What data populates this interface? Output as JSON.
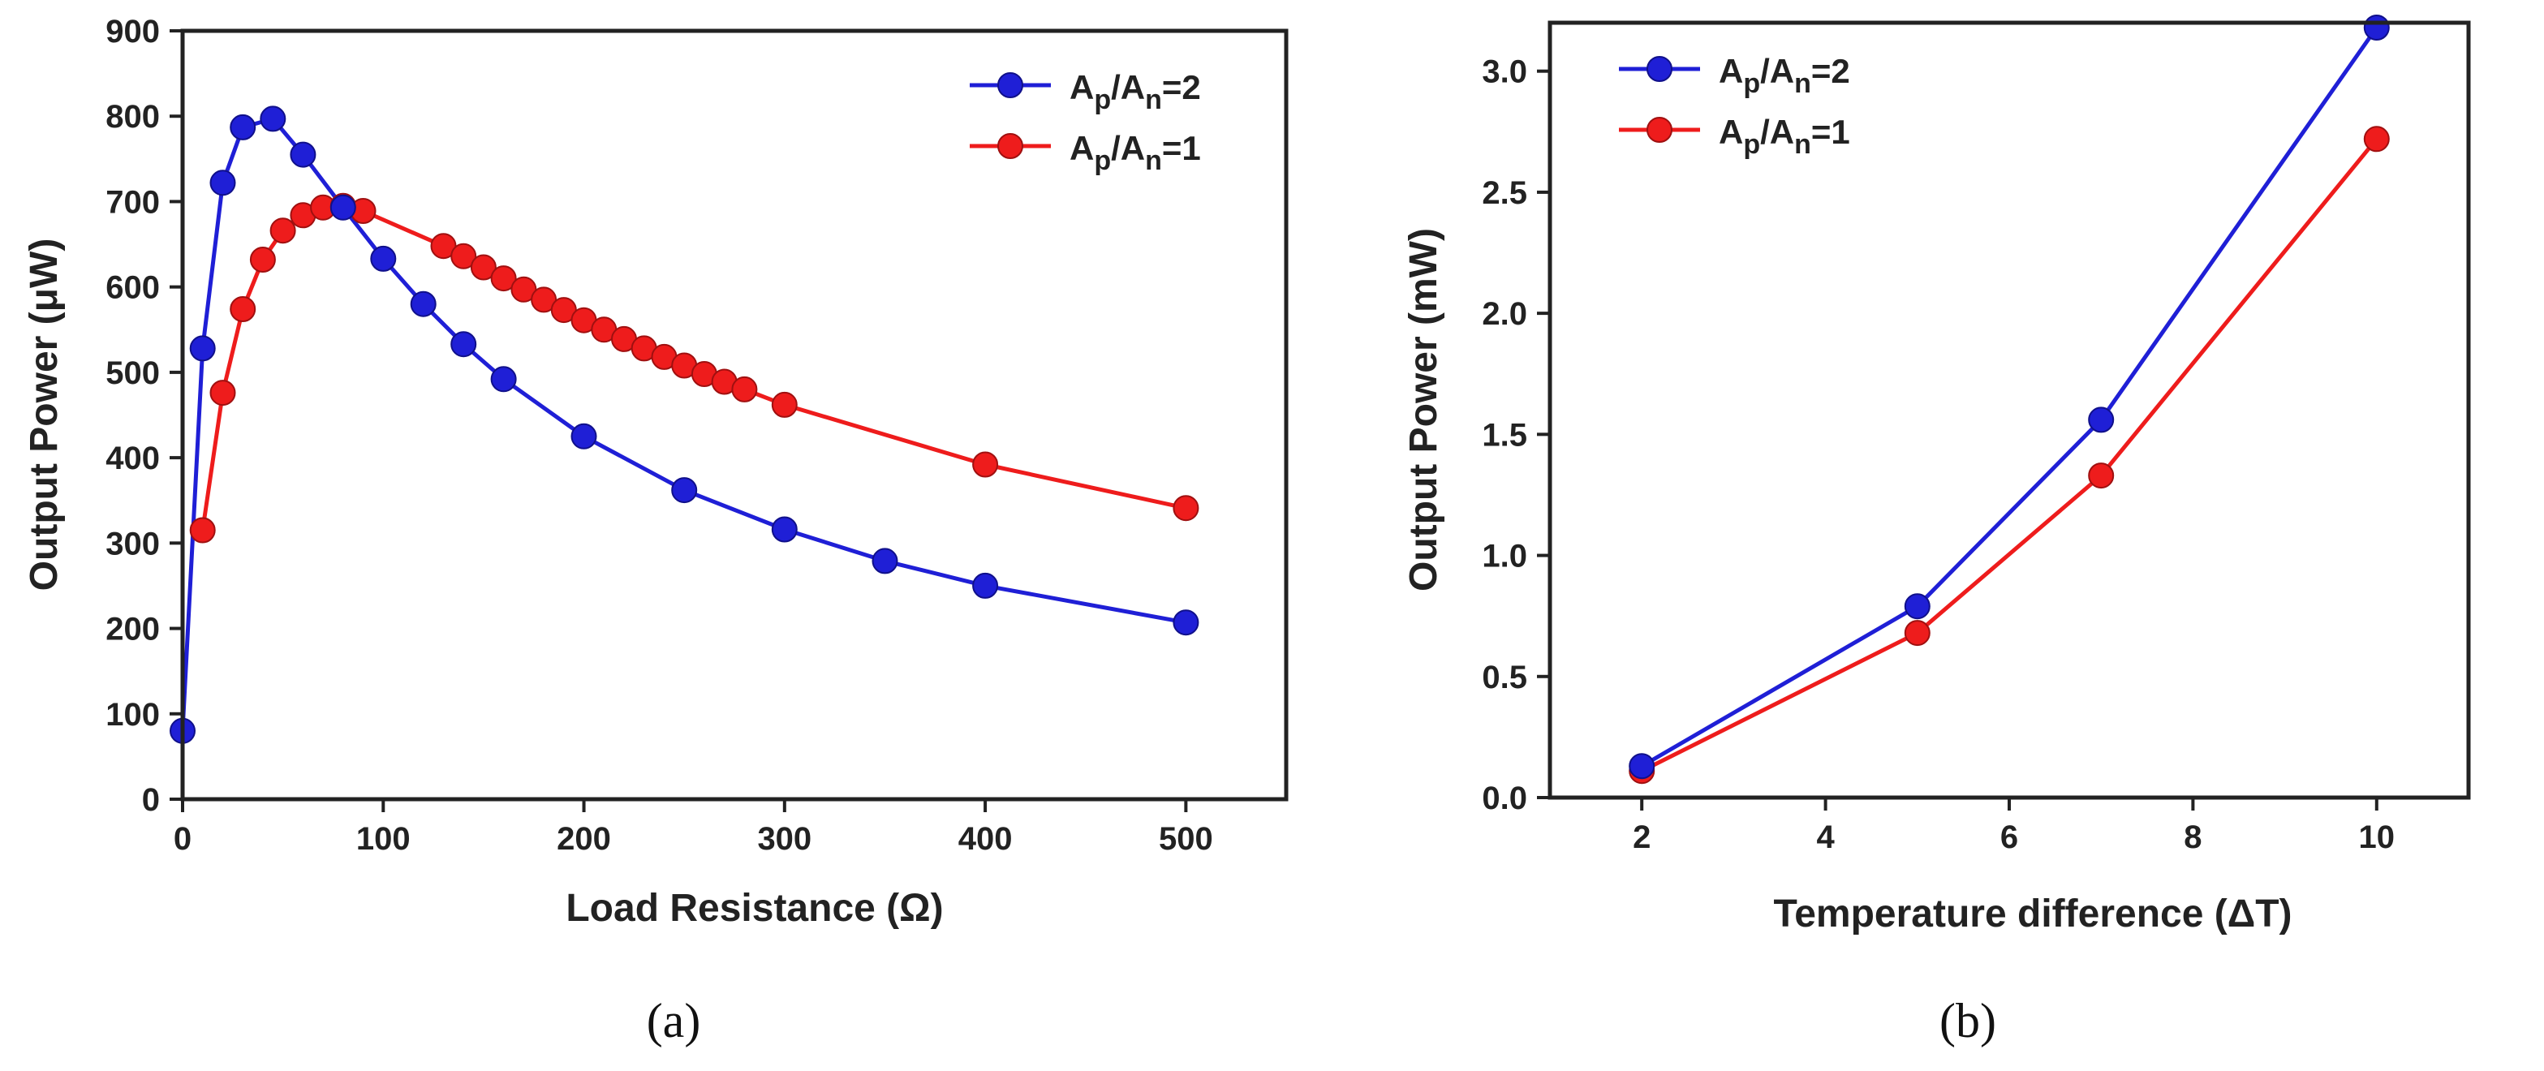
{
  "chart_data": [
    {
      "type": "line",
      "panel_label": "a",
      "xlabel": "Load Resistance (Ω)",
      "ylabel": "Output Power (μW)",
      "xlim": [
        0,
        550
      ],
      "ylim": [
        0,
        900
      ],
      "xticks": [
        0,
        100,
        200,
        300,
        400,
        500
      ],
      "yticks": [
        0,
        100,
        200,
        300,
        400,
        500,
        600,
        700,
        800,
        900
      ],
      "legend_position": "top-right",
      "series": [
        {
          "name": "Ap/An=2",
          "label_main1": "A",
          "label_sub1": "p",
          "label_mid": "/A",
          "label_sub2": "n",
          "label_tail": "=2",
          "color": "#1f1fd6",
          "x": [
            0,
            10,
            20,
            30,
            45,
            60,
            80,
            100,
            120,
            140,
            160,
            200,
            250,
            300,
            350,
            400,
            500
          ],
          "y": [
            80,
            528,
            722,
            787,
            797,
            755,
            693,
            633,
            580,
            533,
            492,
            425,
            362,
            316,
            279,
            250,
            207
          ]
        },
        {
          "name": "Ap/An=1",
          "label_main1": "A",
          "label_sub1": "p",
          "label_mid": "/A",
          "label_sub2": "n",
          "label_tail": "=1",
          "color": "#ee1c1c",
          "x": [
            10,
            20,
            30,
            40,
            50,
            60,
            70,
            80,
            90,
            130,
            140,
            150,
            160,
            170,
            180,
            190,
            200,
            210,
            220,
            230,
            240,
            250,
            260,
            270,
            280,
            300,
            400,
            500
          ],
          "y": [
            315,
            476,
            574,
            632,
            666,
            684,
            693,
            695,
            689,
            648,
            636,
            623,
            610,
            597,
            585,
            573,
            561,
            550,
            539,
            528,
            518,
            508,
            498,
            489,
            480,
            462,
            392,
            341
          ]
        }
      ]
    },
    {
      "type": "line",
      "panel_label": "b",
      "xlabel": "Temperature difference (ΔT)",
      "ylabel": "Output Power (mW)",
      "xlim": [
        1,
        11
      ],
      "ylim": [
        0,
        3.2
      ],
      "xticks": [
        2,
        4,
        6,
        8,
        10
      ],
      "yticks": [
        "0.0",
        "0.5",
        "1.0",
        "1.5",
        "2.0",
        "2.5",
        "3.0"
      ],
      "legend_position": "top-left",
      "series": [
        {
          "name": "Ap/An=2",
          "label_main1": "A",
          "label_sub1": "p",
          "label_mid": "/A",
          "label_sub2": "n",
          "label_tail": "=2",
          "color": "#1f1fd6",
          "x": [
            2,
            5,
            7,
            10
          ],
          "y": [
            0.13,
            0.79,
            1.56,
            3.18
          ]
        },
        {
          "name": "Ap/An=1",
          "label_main1": "A",
          "label_sub1": "p",
          "label_mid": "/A",
          "label_sub2": "n",
          "label_tail": "=1",
          "color": "#ee1c1c",
          "x": [
            2,
            5,
            7,
            10
          ],
          "y": [
            0.11,
            0.68,
            1.33,
            2.72
          ]
        }
      ]
    }
  ],
  "captions": {
    "a": "(a)",
    "b": "(b)"
  }
}
